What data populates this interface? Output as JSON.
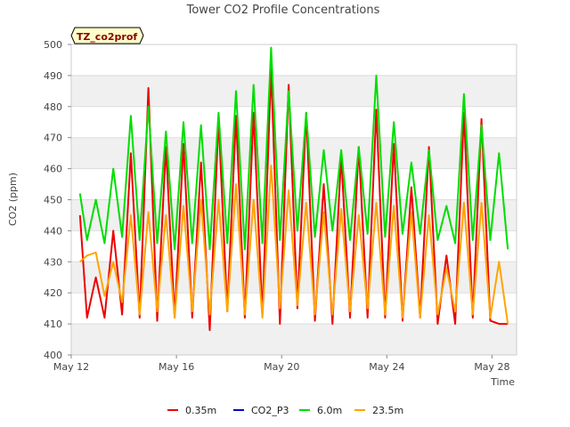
{
  "chart_data": {
    "type": "line",
    "title": "Tower CO2 Profile Concentrations",
    "xlabel": "Time",
    "ylabel": "CO2 (ppm)",
    "site_badge": "TZ_co2prof",
    "xlim": [
      0,
      12.7
    ],
    "ylim": [
      400,
      500
    ],
    "yticks": [
      400,
      410,
      420,
      430,
      440,
      450,
      460,
      470,
      480,
      490,
      500
    ],
    "xticks": [
      {
        "day": 0,
        "label": "May 12"
      },
      {
        "day": 3,
        "label": "May 16"
      },
      {
        "day": 6,
        "label": "May 20"
      },
      {
        "day": 9,
        "label": "May 24"
      },
      {
        "day": 12,
        "label": "May 28"
      }
    ],
    "series": [
      {
        "name": "0.35m",
        "color": "#ee0000",
        "x": [
          0.25,
          0.45,
          0.7,
          0.95,
          1.2,
          1.45,
          1.7,
          1.95,
          2.2,
          2.45,
          2.7,
          2.95,
          3.2,
          3.45,
          3.7,
          3.95,
          4.2,
          4.45,
          4.7,
          4.95,
          5.2,
          5.45,
          5.7,
          5.95,
          6.2,
          6.45,
          6.7,
          6.95,
          7.2,
          7.45,
          7.7,
          7.95,
          8.2,
          8.45,
          8.7,
          8.95,
          9.2,
          9.45,
          9.7,
          9.95,
          10.2,
          10.45,
          10.7,
          10.95,
          11.2,
          11.45,
          11.7,
          11.95,
          12.2,
          12.45
        ],
        "values": [
          445,
          412,
          425,
          412,
          440,
          413,
          465,
          412,
          486,
          411,
          467,
          412,
          468,
          412,
          462,
          408,
          476,
          414,
          477,
          412,
          478,
          413,
          492,
          410,
          487,
          415,
          478,
          411,
          455,
          410,
          464,
          412,
          467,
          412,
          479,
          412,
          468,
          411,
          454,
          412,
          467,
          410,
          432,
          410,
          478,
          412,
          476,
          411,
          410,
          410
        ]
      },
      {
        "name": "CO2_P3",
        "color": "#0000cc",
        "x": [],
        "values": []
      },
      {
        "name": "6.0m",
        "color": "#00dd00",
        "x": [
          0.25,
          0.45,
          0.7,
          0.95,
          1.2,
          1.45,
          1.7,
          1.95,
          2.2,
          2.45,
          2.7,
          2.95,
          3.2,
          3.45,
          3.7,
          3.95,
          4.2,
          4.45,
          4.7,
          4.95,
          5.2,
          5.45,
          5.7,
          5.95,
          6.2,
          6.45,
          6.7,
          6.95,
          7.2,
          7.45,
          7.7,
          7.95,
          8.2,
          8.45,
          8.7,
          8.95,
          9.2,
          9.45,
          9.7,
          9.95,
          10.2,
          10.45,
          10.7,
          10.95,
          11.2,
          11.45,
          11.7,
          11.95,
          12.2,
          12.45
        ],
        "values": [
          452,
          437,
          450,
          436,
          460,
          438,
          477,
          437,
          480,
          436,
          472,
          434,
          475,
          436,
          474,
          434,
          478,
          436,
          485,
          434,
          487,
          436,
          499,
          437,
          485,
          440,
          478,
          438,
          466,
          440,
          466,
          437,
          467,
          439,
          490,
          438,
          475,
          439,
          462,
          439,
          466,
          437,
          448,
          436,
          484,
          437,
          474,
          437,
          465,
          434
        ]
      },
      {
        "name": "23.5m",
        "color": "#ffa500",
        "x": [
          0.25,
          0.45,
          0.7,
          0.95,
          1.2,
          1.45,
          1.7,
          1.95,
          2.2,
          2.45,
          2.7,
          2.95,
          3.2,
          3.45,
          3.7,
          3.95,
          4.2,
          4.45,
          4.7,
          4.95,
          5.2,
          5.45,
          5.7,
          5.95,
          6.2,
          6.45,
          6.7,
          6.95,
          7.2,
          7.45,
          7.7,
          7.95,
          8.2,
          8.45,
          8.7,
          8.95,
          9.2,
          9.45,
          9.7,
          9.95,
          10.2,
          10.45,
          10.7,
          10.95,
          11.2,
          11.45,
          11.7,
          11.95,
          12.2,
          12.45
        ],
        "values": [
          430,
          432,
          433,
          419,
          430,
          417,
          445,
          413,
          446,
          414,
          445,
          412,
          448,
          414,
          450,
          413,
          450,
          414,
          455,
          413,
          450,
          412,
          461,
          415,
          453,
          416,
          449,
          413,
          446,
          413,
          447,
          414,
          445,
          415,
          449,
          413,
          448,
          412,
          446,
          412,
          445,
          413,
          428,
          414,
          449,
          413,
          449,
          412,
          430,
          410
        ]
      }
    ],
    "legend": [
      "0.35m",
      "CO2_P3",
      "6.0m",
      "23.5m"
    ],
    "legend_position": "bottom",
    "background_bands": "alternating light gray"
  }
}
